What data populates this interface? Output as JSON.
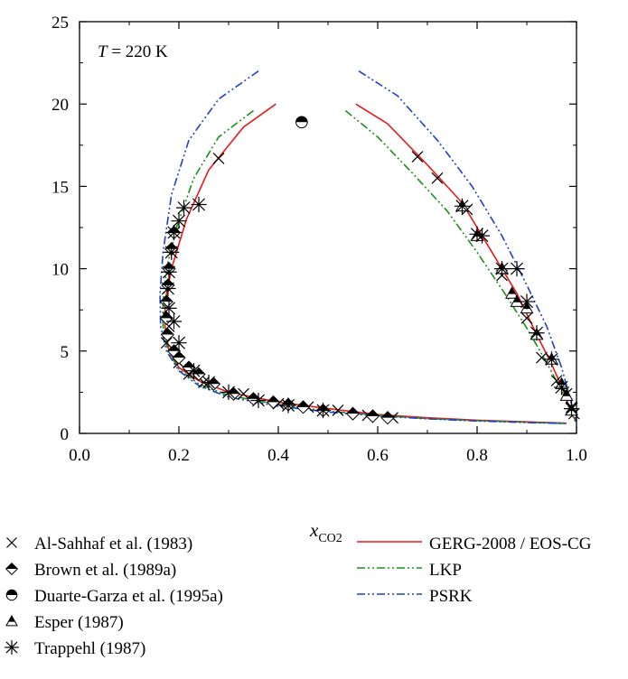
{
  "chart_data": {
    "type": "scatter",
    "annotation": {
      "italic": "T",
      "rest": " = 220 K"
    },
    "xlabel": {
      "main": "x",
      "sub": "CO2"
    },
    "ylabel": "",
    "xlim": [
      0.0,
      1.0
    ],
    "ylim": [
      0,
      25
    ],
    "x_ticks": [
      0.0,
      0.2,
      0.4,
      0.6,
      0.8,
      1.0
    ],
    "x_tick_labels": [
      "0.0",
      "0.2",
      "0.4",
      "0.6",
      "0.8",
      "1.0"
    ],
    "y_ticks": [
      0,
      5,
      10,
      15,
      20,
      25
    ],
    "y_tick_labels": [
      "0",
      "5",
      "10",
      "15",
      "20",
      "25"
    ],
    "grid": false,
    "legend_position": "below-plot",
    "series": [
      {
        "name": "Al-Sahhaf et al. (1983)",
        "kind": "points",
        "marker": "x-mark",
        "color": "#000000",
        "points": [
          [
            0.175,
            5.5
          ],
          [
            0.18,
            6.5
          ],
          [
            0.2,
            4.3
          ],
          [
            0.22,
            3.6
          ],
          [
            0.25,
            3.1
          ],
          [
            0.28,
            16.7
          ],
          [
            0.33,
            2.4
          ],
          [
            0.4,
            1.8
          ],
          [
            0.46,
            1.6
          ],
          [
            0.52,
            1.4
          ],
          [
            0.58,
            1.1
          ],
          [
            0.63,
            0.95
          ],
          [
            0.68,
            16.8
          ],
          [
            0.72,
            15.5
          ],
          [
            0.78,
            13.6
          ],
          [
            0.85,
            9.6
          ],
          [
            0.9,
            7.0
          ],
          [
            0.93,
            4.6
          ],
          [
            0.96,
            3.2
          ],
          [
            0.98,
            2.4
          ],
          [
            0.99,
            1.6
          ],
          [
            0.995,
            1.2
          ]
        ]
      },
      {
        "name": "Brown et al. (1989a)",
        "kind": "points",
        "marker": "half-diamond",
        "color": "#000000",
        "points": [
          [
            0.19,
            12.2
          ],
          [
            0.185,
            11.2
          ],
          [
            0.18,
            10.0
          ],
          [
            0.178,
            9.0
          ],
          [
            0.175,
            8.0
          ],
          [
            0.175,
            7.0
          ],
          [
            0.177,
            6.0
          ],
          [
            0.19,
            5.0
          ],
          [
            0.2,
            4.6
          ],
          [
            0.22,
            4.0
          ],
          [
            0.24,
            3.6
          ],
          [
            0.27,
            3.0
          ],
          [
            0.31,
            2.4
          ],
          [
            0.35,
            2.1
          ],
          [
            0.39,
            1.9
          ],
          [
            0.42,
            1.75
          ],
          [
            0.45,
            1.6
          ],
          [
            0.49,
            1.4
          ],
          [
            0.55,
            1.2
          ],
          [
            0.59,
            1.05
          ],
          [
            0.62,
            0.95
          ]
        ]
      },
      {
        "name": "Duarte-Garza et al. (1995a)",
        "kind": "points",
        "marker": "half-circle",
        "color": "#000000",
        "points": [
          [
            0.447,
            18.9
          ]
        ]
      },
      {
        "name": "Esper (1987)",
        "kind": "points",
        "marker": "half-triangle",
        "color": "#000000",
        "points": [
          [
            0.77,
            13.8
          ],
          [
            0.8,
            12.0
          ],
          [
            0.85,
            10.0
          ],
          [
            0.87,
            8.5
          ],
          [
            0.88,
            8.0
          ],
          [
            0.9,
            7.6
          ],
          [
            0.92,
            6.0
          ],
          [
            0.95,
            4.5
          ],
          [
            0.97,
            3.0
          ],
          [
            0.98,
            2.3
          ],
          [
            0.99,
            1.4
          ]
        ]
      },
      {
        "name": "Trappehl (1987)",
        "kind": "points",
        "marker": "asterisk",
        "color": "#000000",
        "points": [
          [
            0.24,
            13.9
          ],
          [
            0.21,
            13.7
          ],
          [
            0.2,
            12.9
          ],
          [
            0.19,
            12.2
          ],
          [
            0.185,
            11.0
          ],
          [
            0.18,
            9.8
          ],
          [
            0.178,
            8.8
          ],
          [
            0.18,
            7.6
          ],
          [
            0.19,
            6.8
          ],
          [
            0.2,
            5.5
          ],
          [
            0.23,
            3.8
          ],
          [
            0.26,
            3.1
          ],
          [
            0.3,
            2.5
          ],
          [
            0.36,
            2.0
          ],
          [
            0.42,
            1.7
          ],
          [
            0.49,
            1.4
          ],
          [
            0.77,
            13.8
          ],
          [
            0.8,
            12.1
          ],
          [
            0.81,
            12.0
          ],
          [
            0.85,
            10.0
          ],
          [
            0.88,
            10.0
          ],
          [
            0.9,
            8.0
          ],
          [
            0.92,
            6.1
          ],
          [
            0.95,
            4.5
          ],
          [
            0.97,
            2.8
          ],
          [
            0.99,
            1.5
          ]
        ]
      },
      {
        "name": "GERG-2008 / EOS-CG",
        "kind": "line",
        "style": "solid",
        "color": "#e8191b",
        "segments": [
          [
            [
              0.395,
              20.0
            ],
            [
              0.33,
              18.6
            ],
            [
              0.26,
              16.0
            ],
            [
              0.215,
              13.0
            ],
            [
              0.185,
              10.0
            ],
            [
              0.172,
              8.0
            ],
            [
              0.172,
              6.5
            ],
            [
              0.18,
              5.0
            ],
            [
              0.2,
              4.0
            ],
            [
              0.24,
              3.2
            ],
            [
              0.3,
              2.5
            ],
            [
              0.4,
              1.9
            ],
            [
              0.5,
              1.5
            ],
            [
              0.6,
              1.15
            ],
            [
              0.7,
              0.95
            ],
            [
              0.8,
              0.8
            ],
            [
              0.9,
              0.7
            ],
            [
              0.98,
              0.62
            ]
          ],
          [
            [
              0.556,
              20.0
            ],
            [
              0.62,
              18.8
            ],
            [
              0.7,
              16.3
            ],
            [
              0.77,
              14.0
            ],
            [
              0.83,
              11.0
            ],
            [
              0.88,
              8.5
            ],
            [
              0.92,
              6.0
            ],
            [
              0.95,
              4.2
            ],
            [
              0.975,
              2.5
            ],
            [
              0.99,
              1.2
            ],
            [
              1.0,
              0.7
            ]
          ]
        ]
      },
      {
        "name": "LKP",
        "kind": "line",
        "style": "dash-dot-dot",
        "color": "#1a8f1a",
        "segments": [
          [
            [
              0.35,
              19.6
            ],
            [
              0.28,
              18.0
            ],
            [
              0.23,
              15.5
            ],
            [
              0.195,
              12.5
            ],
            [
              0.175,
              10.0
            ],
            [
              0.168,
              8.0
            ],
            [
              0.168,
              6.5
            ],
            [
              0.178,
              5.0
            ],
            [
              0.2,
              3.9
            ],
            [
              0.24,
              3.0
            ],
            [
              0.3,
              2.3
            ],
            [
              0.4,
              1.75
            ],
            [
              0.5,
              1.35
            ],
            [
              0.6,
              1.1
            ],
            [
              0.7,
              0.9
            ],
            [
              0.8,
              0.78
            ],
            [
              0.9,
              0.68
            ],
            [
              0.98,
              0.6
            ]
          ],
          [
            [
              0.535,
              19.6
            ],
            [
              0.6,
              18.0
            ],
            [
              0.67,
              15.8
            ],
            [
              0.74,
              13.5
            ],
            [
              0.8,
              11.0
            ],
            [
              0.86,
              8.3
            ],
            [
              0.9,
              6.4
            ],
            [
              0.94,
              4.3
            ],
            [
              0.97,
              2.6
            ],
            [
              0.99,
              1.2
            ],
            [
              1.0,
              0.6
            ]
          ]
        ]
      },
      {
        "name": "PSRK",
        "kind": "line",
        "style": "dash-dot-dot",
        "color": "#1e3fd0",
        "segments": [
          [
            [
              0.36,
              22.0
            ],
            [
              0.28,
              20.3
            ],
            [
              0.22,
              17.8
            ],
            [
              0.185,
              14.5
            ],
            [
              0.168,
              11.0
            ],
            [
              0.162,
              8.5
            ],
            [
              0.163,
              6.5
            ],
            [
              0.175,
              5.0
            ],
            [
              0.2,
              3.8
            ],
            [
              0.24,
              2.9
            ],
            [
              0.3,
              2.2
            ],
            [
              0.4,
              1.65
            ],
            [
              0.5,
              1.3
            ],
            [
              0.6,
              1.05
            ],
            [
              0.7,
              0.88
            ],
            [
              0.8,
              0.75
            ],
            [
              0.9,
              0.66
            ],
            [
              0.98,
              0.6
            ]
          ],
          [
            [
              0.562,
              22.0
            ],
            [
              0.64,
              20.5
            ],
            [
              0.72,
              17.8
            ],
            [
              0.79,
              15.0
            ],
            [
              0.85,
              12.0
            ],
            [
              0.9,
              9.0
            ],
            [
              0.94,
              6.5
            ],
            [
              0.97,
              4.0
            ],
            [
              0.99,
              1.8
            ],
            [
              1.0,
              0.7
            ]
          ]
        ]
      }
    ]
  }
}
